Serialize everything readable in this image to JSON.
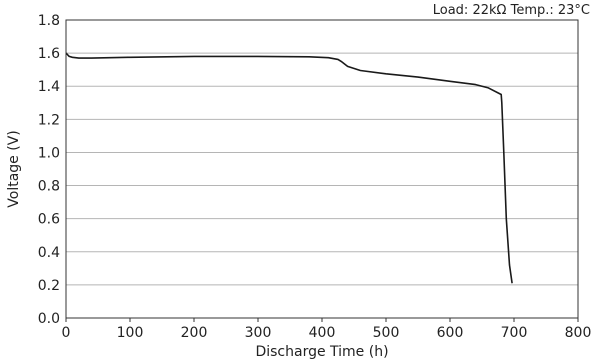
{
  "chart_data": {
    "type": "line",
    "title": "",
    "annotation": "Load: 22kΩ   Temp.: 23°C",
    "xlabel": "Discharge Time (h)",
    "ylabel": "Voltage (V)",
    "xlim": [
      0,
      800
    ],
    "ylim": [
      0.0,
      1.8
    ],
    "x_ticks": [
      "0",
      "100",
      "200",
      "300",
      "400",
      "500",
      "600",
      "700",
      "800"
    ],
    "y_ticks": [
      "0.0",
      "0.2",
      "0.4",
      "0.6",
      "0.8",
      "1.0",
      "1.2",
      "1.4",
      "1.6",
      "1.8"
    ],
    "grid": "horizontal",
    "legend": "none",
    "colors": {
      "line": "#1a1a1a",
      "grid": "#b5b5b5",
      "axis": "#333333"
    },
    "series": [
      {
        "x": [
          0,
          5,
          10,
          20,
          40,
          100,
          200,
          300,
          380,
          410,
          425,
          430,
          440,
          460,
          500,
          550,
          600,
          640,
          660,
          680,
          681,
          684,
          688,
          693,
          697
        ],
        "y": [
          1.6,
          1.58,
          1.575,
          1.57,
          1.57,
          1.575,
          1.58,
          1.58,
          1.578,
          1.572,
          1.562,
          1.55,
          1.52,
          1.495,
          1.475,
          1.455,
          1.43,
          1.41,
          1.39,
          1.35,
          1.3,
          1.0,
          0.6,
          0.32,
          0.21
        ]
      }
    ]
  }
}
